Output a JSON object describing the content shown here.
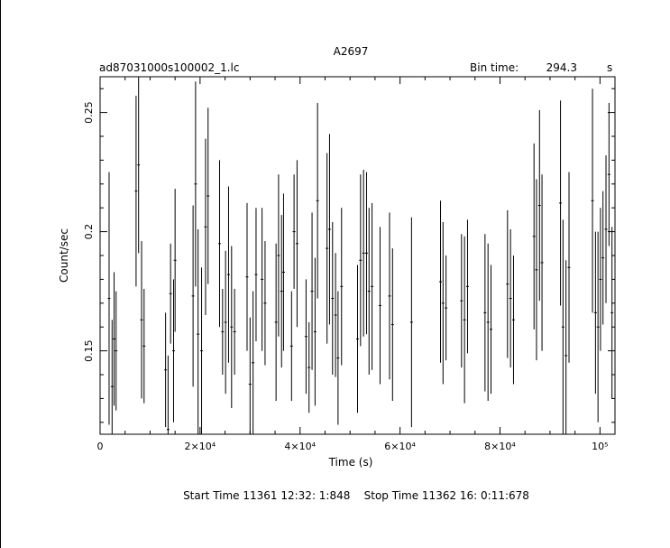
{
  "chart_data": {
    "type": "scatter",
    "title": "A2697",
    "filename": "ad87031000s100002_1.lc",
    "bin_time_label": "Bin time:",
    "bin_time_value": "294.3",
    "bin_time_unit": "s",
    "xlabel": "Time (s)",
    "ylabel": "Count/sec",
    "xlim": [
      0,
      103000
    ],
    "ylim": [
      0.115,
      0.265
    ],
    "grid": false,
    "x_ticks": [
      {
        "value": 0,
        "label": "0"
      },
      {
        "value": 20000,
        "label": "2×10⁴"
      },
      {
        "value": 40000,
        "label": "4×10⁴"
      },
      {
        "value": 60000,
        "label": "6×10⁴"
      },
      {
        "value": 80000,
        "label": "8×10⁴"
      },
      {
        "value": 100000,
        "label": "10⁵"
      }
    ],
    "y_ticks": [
      {
        "value": 0.15,
        "label": "0.15"
      },
      {
        "value": 0.2,
        "label": "0.2"
      },
      {
        "value": 0.25,
        "label": "0.25"
      }
    ],
    "footer": "Start Time 11361 12:32: 1:848    Stop Time 11362 16: 0:11:678",
    "series": [
      {
        "points": [
          [
            1800,
            0.172,
            0.053
          ],
          [
            2400,
            0.135,
            0.028
          ],
          [
            2800,
            0.155,
            0.028
          ],
          [
            3200,
            0.15,
            0.025
          ],
          [
            7200,
            0.217,
            0.04
          ],
          [
            7700,
            0.228,
            0.037
          ],
          [
            8300,
            0.163,
            0.033
          ],
          [
            8800,
            0.152,
            0.024
          ],
          [
            13100,
            0.142,
            0.024
          ],
          [
            13600,
            0.117,
            0.031
          ],
          [
            14100,
            0.174,
            0.021
          ],
          [
            14700,
            0.15,
            0.03
          ],
          [
            15000,
            0.188,
            0.03
          ],
          [
            18600,
            0.173,
            0.038
          ],
          [
            19100,
            0.22,
            0.043
          ],
          [
            19600,
            0.157,
            0.044
          ],
          [
            20300,
            0.15,
            0.035
          ],
          [
            21100,
            0.202,
            0.037
          ],
          [
            21600,
            0.215,
            0.037
          ],
          [
            23900,
            0.195,
            0.035
          ],
          [
            24500,
            0.158,
            0.018
          ],
          [
            25100,
            0.162,
            0.03
          ],
          [
            25700,
            0.182,
            0.037
          ],
          [
            26300,
            0.16,
            0.034
          ],
          [
            26900,
            0.158,
            0.018
          ],
          [
            29400,
            0.181,
            0.031
          ],
          [
            30000,
            0.136,
            0.028
          ],
          [
            30600,
            0.145,
            0.03
          ],
          [
            31200,
            0.182,
            0.028
          ],
          [
            32400,
            0.18,
            0.03
          ],
          [
            33000,
            0.17,
            0.026
          ],
          [
            35200,
            0.162,
            0.033
          ],
          [
            35700,
            0.19,
            0.034
          ],
          [
            36300,
            0.175,
            0.032
          ],
          [
            36700,
            0.183,
            0.033
          ],
          [
            38300,
            0.152,
            0.023
          ],
          [
            38800,
            0.2,
            0.024
          ],
          [
            39400,
            0.195,
            0.035
          ],
          [
            41200,
            0.156,
            0.024
          ],
          [
            41800,
            0.143,
            0.019
          ],
          [
            42400,
            0.175,
            0.033
          ],
          [
            43000,
            0.158,
            0.031
          ],
          [
            43500,
            0.213,
            0.041
          ],
          [
            45400,
            0.193,
            0.04
          ],
          [
            45900,
            0.201,
            0.04
          ],
          [
            46500,
            0.172,
            0.032
          ],
          [
            47100,
            0.165,
            0.026
          ],
          [
            47600,
            0.147,
            0.028
          ],
          [
            48300,
            0.177,
            0.033
          ],
          [
            51500,
            0.155,
            0.031
          ],
          [
            52100,
            0.188,
            0.036
          ],
          [
            52700,
            0.191,
            0.035
          ],
          [
            53300,
            0.191,
            0.034
          ],
          [
            53800,
            0.175,
            0.035
          ],
          [
            54400,
            0.177,
            0.035
          ],
          [
            56000,
            0.169,
            0.033
          ],
          [
            57900,
            0.173,
            0.035
          ],
          [
            58500,
            0.161,
            0.032
          ],
          [
            62300,
            0.162,
            0.044
          ],
          [
            68100,
            0.179,
            0.034
          ],
          [
            68600,
            0.17,
            0.034
          ],
          [
            69200,
            0.168,
            0.022
          ],
          [
            72300,
            0.171,
            0.028
          ],
          [
            72900,
            0.163,
            0.035
          ],
          [
            73500,
            0.177,
            0.028
          ],
          [
            77000,
            0.166,
            0.033
          ],
          [
            77600,
            0.162,
            0.033
          ],
          [
            78200,
            0.159,
            0.027
          ],
          [
            81500,
            0.178,
            0.031
          ],
          [
            82100,
            0.172,
            0.029
          ],
          [
            82700,
            0.163,
            0.027
          ],
          [
            86800,
            0.198,
            0.039
          ],
          [
            87300,
            0.184,
            0.038
          ],
          [
            87900,
            0.211,
            0.04
          ],
          [
            88400,
            0.187,
            0.037
          ],
          [
            92100,
            0.212,
            0.043
          ],
          [
            92600,
            0.16,
            0.045
          ],
          [
            93200,
            0.148,
            0.04
          ],
          [
            93800,
            0.185,
            0.04
          ],
          [
            98500,
            0.213,
            0.047
          ],
          [
            99100,
            0.166,
            0.034
          ],
          [
            99600,
            0.16,
            0.04
          ],
          [
            100100,
            0.18,
            0.03
          ],
          [
            100600,
            0.189,
            0.028
          ],
          [
            101200,
            0.201,
            0.031
          ],
          [
            101800,
            0.224,
            0.03
          ],
          [
            102400,
            0.166,
            0.036
          ]
        ]
      }
    ]
  }
}
